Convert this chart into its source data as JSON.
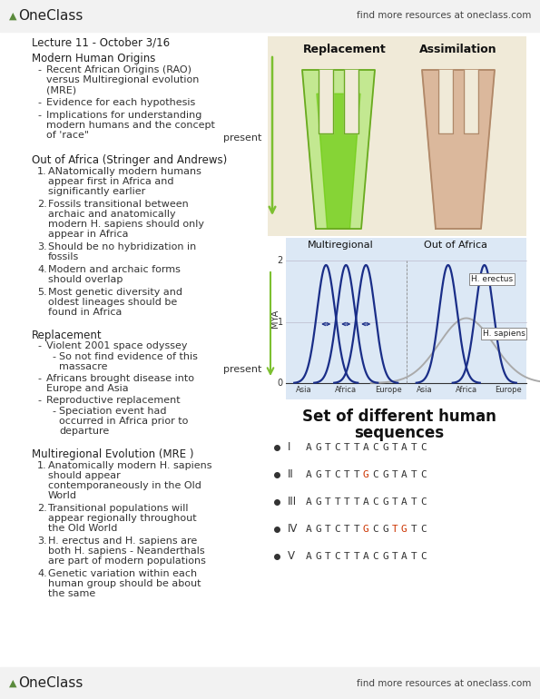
{
  "bg_color": "#ffffff",
  "header_footer_bg": "#f2f2f2",
  "oneclass_color": "#5a8a3c",
  "header_right": "find more resources at oneclass.com",
  "diagram1_bg": "#f0ead8",
  "diagram2_bg": "#dce8f5",
  "title": "Lecture 11 - October 3/16",
  "section1_title": "Modern Human Origins",
  "section1_bullets": [
    "Recent African Origins (RAO) versus Multiregional evolution (MRE)",
    "Evidence for each hypothesis",
    "Implications for understanding modern humans and the concept of 'race\""
  ],
  "section2_title": "Out of Africa (Stringer and Andrews)",
  "section2_items": [
    "ANatomically modern humans appear first in Africa and significantly earlier",
    "Fossils transitional between archaic and anatomically modern H. sapiens should only appear in Africa",
    "Should be no hybridization in fossils",
    "Modern and archaic forms should overlap",
    "Most genetic diversity and oldest lineages should be found in Africa"
  ],
  "section3_title": "Replacement",
  "section3_bullets_l1": [
    "Violent 2001 space odyssey",
    "Africans brought disease into Europe and Asia",
    "Reproductive replacement"
  ],
  "section3_sub1": "So not find evidence of this massacre",
  "section3_sub2": "Speciation event had occurred in Africa prior to departure",
  "section4_title": "Multiregional Evolution (MRE )",
  "section4_items": [
    "Anatomically modern H. sapiens should appear contemporaneously in the Old World",
    "Transitional populations will appear regionally throughout the Old World",
    "H. erectus and H. sapiens are both H. sapiens - Neanderthals are part of modern populations",
    "Genetic variation within each human group should be about the same"
  ],
  "box_title_line1": "Set of different human",
  "box_title_line2": "sequences",
  "sequences": [
    {
      "label": "I",
      "seq": "AGTCTTACGTATC",
      "highlight": []
    },
    {
      "label": "II",
      "seq": "AGTCTTGCGTATC",
      "highlight": [
        6
      ]
    },
    {
      "label": "III",
      "seq": "AGTTTTACGTATC",
      "highlight": []
    },
    {
      "label": "IV",
      "seq": "AGTCTTGCGTGTC",
      "highlight": [
        6,
        9,
        10
      ]
    },
    {
      "label": "V",
      "seq": "AGTCTTACGTATC",
      "highlight": []
    }
  ],
  "diag1_label_replacement": "Replacement",
  "diag1_label_assimilation": "Assimilation",
  "diag1_label_present": "present",
  "diag2_label_multiregional": "Multiregional",
  "diag2_label_ooa": "Out of Africa",
  "diag2_label_present": "present",
  "diag2_x_labels_left": [
    "Asia",
    "Africa",
    "Europe"
  ],
  "diag2_x_labels_right": [
    "Asia",
    "Africa",
    "Europe"
  ],
  "diag2_ylabel": "MYA",
  "diag2_h_erectus": "H. erectus",
  "diag2_h_sapiens": "H. sapiens",
  "green_arrow_color": "#7cc030",
  "replacement_green": "#8ec840",
  "assimilation_pink": "#d4a090"
}
